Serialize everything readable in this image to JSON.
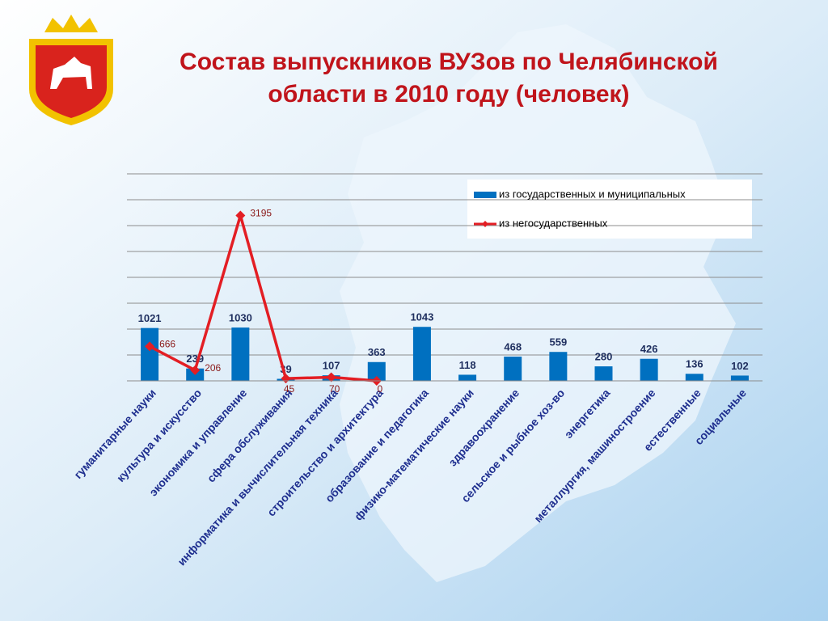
{
  "chart_data": {
    "type": "bar_line",
    "title": [
      "Состав выпускников ВУЗов по Челябинской",
      "области в 2010 году (человек)"
    ],
    "categories": [
      "гуманитарные науки",
      "культура и искусство",
      "экономика и управление",
      "сфера обслуживания",
      "информатика и вычислительная техника",
      "строительство и архитектура",
      "образование и педагогика",
      "физико-математические науки",
      "здравоохранение",
      "сельское и рыбное хоз-во",
      "энергетика",
      "металлургия, машиностроение",
      "естественные",
      "социальные"
    ],
    "series": [
      {
        "name": "из государственных и муниципальных",
        "type": "bar",
        "color": "#0070c0",
        "values": [
          1021,
          239,
          1030,
          39,
          107,
          363,
          1043,
          118,
          468,
          559,
          280,
          426,
          136,
          102
        ]
      },
      {
        "name": "из негосударственных",
        "type": "line",
        "color": "#e31e24",
        "values": [
          666,
          206,
          3195,
          45,
          70,
          0,
          null,
          null,
          null,
          null,
          null,
          null,
          null,
          null
        ]
      }
    ],
    "ylim": [
      0,
      4000
    ],
    "yticks": [
      0,
      500,
      1000,
      1500,
      2000,
      2500,
      3000,
      3500,
      4000
    ],
    "grid": true,
    "legend": "top-right"
  }
}
